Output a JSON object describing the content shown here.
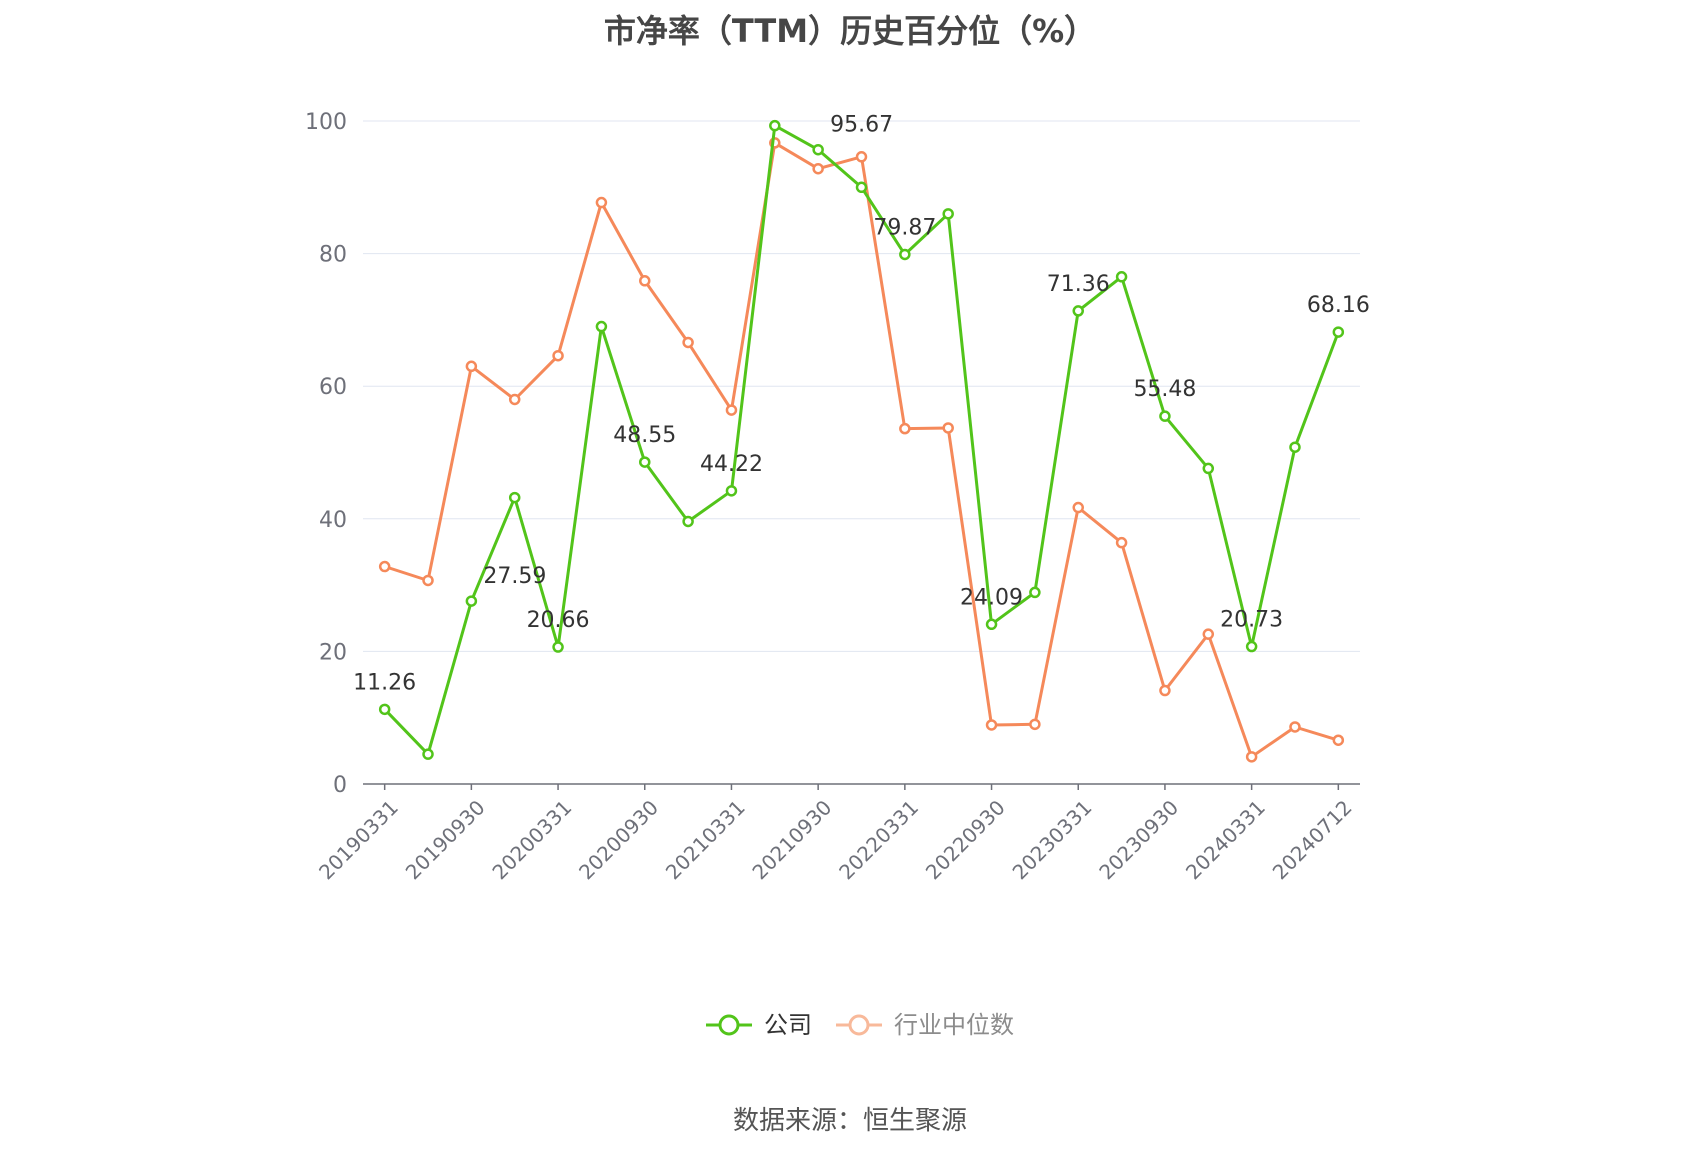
{
  "chart_data": {
    "type": "line",
    "title": "市净率（TTM）历史百分位（%）",
    "source": "数据来源：恒生聚源",
    "ylim": [
      0,
      100
    ],
    "yticks": [
      0,
      20,
      40,
      60,
      80,
      100
    ],
    "grid": true,
    "legend_position": "bottom",
    "x": [
      "20190331",
      "20190630",
      "20190930",
      "20191231",
      "20200331",
      "20200630",
      "20200930",
      "20201231",
      "20210331",
      "20210630",
      "20210930",
      "20211231",
      "20220331",
      "20220630",
      "20220930",
      "20221231",
      "20230331",
      "20230630",
      "20230930",
      "20231231",
      "20240331",
      "20240630",
      "20240712"
    ],
    "x_tick_labels": [
      "20190331",
      "20190930",
      "20200331",
      "20200930",
      "20210331",
      "20210930",
      "20220331",
      "20220930",
      "20230331",
      "20230930",
      "20240331",
      "20240712"
    ],
    "series": [
      {
        "name": "公司",
        "color": "#52c41a",
        "values": [
          11.26,
          4.5,
          27.59,
          43.2,
          20.66,
          69.0,
          48.55,
          39.6,
          44.22,
          99.3,
          95.67,
          90.0,
          79.87,
          86.0,
          24.09,
          28.9,
          71.36,
          76.5,
          55.48,
          47.6,
          20.73,
          50.8,
          68.16
        ],
        "labels": {
          "0": "11.26",
          "2": "27.59",
          "4": "20.66",
          "6": "48.55",
          "8": "44.22",
          "10": "95.67",
          "12": "79.87",
          "14": "24.09",
          "16": "71.36",
          "18": "55.48",
          "20": "20.73",
          "22": "68.16"
        }
      },
      {
        "name": "行业中位数",
        "color": "#f5895a",
        "values": [
          32.8,
          30.7,
          63.0,
          58.0,
          64.6,
          87.7,
          75.9,
          66.6,
          56.4,
          96.7,
          92.8,
          94.6,
          53.6,
          53.7,
          8.9,
          9.0,
          41.7,
          36.4,
          14.1,
          22.6,
          4.1,
          8.6,
          6.6
        ]
      }
    ]
  }
}
